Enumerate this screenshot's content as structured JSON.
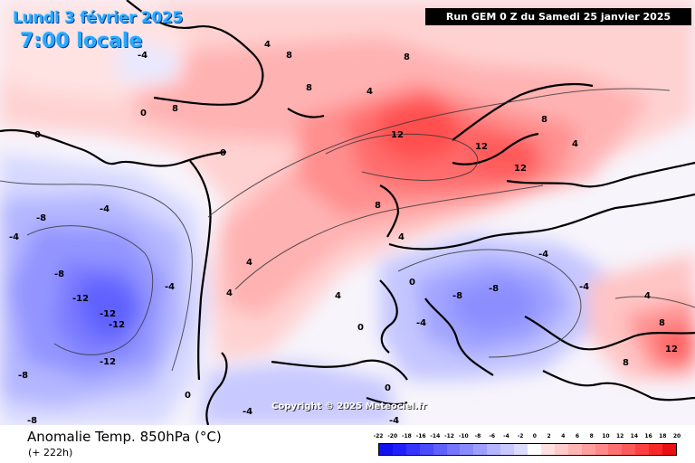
{
  "header": {
    "date": "Lundi 3 février 2025",
    "time": "7:00 locale",
    "run": "Run GEM 0 Z du Samedi 25 janvier 2025"
  },
  "watermark": "Copyright © 2025 Meteociel.fr",
  "footer": {
    "title": "Anomalie Temp. 850hPa (°C)",
    "lead": "(+ 222h)"
  },
  "scale": {
    "labels": [
      "-22",
      "-20",
      "-18",
      "-16",
      "-14",
      "-12",
      "-10",
      "-8",
      "-6",
      "-4",
      "-2",
      "0",
      "2",
      "4",
      "6",
      "8",
      "10",
      "12",
      "14",
      "16",
      "18",
      "20"
    ],
    "colors": [
      "#1010f0",
      "#2020ff",
      "#3535ff",
      "#4a4aff",
      "#6060ff",
      "#7575ff",
      "#8a8aff",
      "#9e9eff",
      "#b4b4ff",
      "#c8c8ff",
      "#dcdcff",
      "#ffffff",
      "#ffe0e0",
      "#ffcaca",
      "#ffb4b4",
      "#ff9e9e",
      "#ff8888",
      "#ff7070",
      "#ff5a5a",
      "#ff4040",
      "#f82828",
      "#e81010"
    ]
  },
  "map_labels": [
    {
      "name": "label-hudson-neg4",
      "text": "-4"
    },
    {
      "name": "label-greenland-4",
      "text": "4"
    },
    {
      "name": "label-greenland-8a",
      "text": "8"
    },
    {
      "name": "label-greenland-8b",
      "text": "8"
    },
    {
      "name": "label-greenland-8c",
      "text": "8"
    },
    {
      "name": "label-greenland-0",
      "text": "0"
    },
    {
      "name": "label-labrador-0",
      "text": "0"
    },
    {
      "name": "label-labrador-neg4",
      "text": "-4"
    },
    {
      "name": "label-atl-neg8",
      "text": "-8"
    },
    {
      "name": "label-atl-neg4",
      "text": "-4"
    },
    {
      "name": "label-atl-neg12a",
      "text": "-12"
    },
    {
      "name": "label-atl-neg12b",
      "text": "-12"
    },
    {
      "name": "label-atl-neg12c",
      "text": "-12"
    },
    {
      "name": "label-atl-neg12d",
      "text": "-12"
    },
    {
      "name": "label-atl-neg8b",
      "text": "-8"
    },
    {
      "name": "label-atl-neg8c",
      "text": "-8"
    },
    {
      "name": "label-atl-neg4b",
      "text": "-4"
    },
    {
      "name": "label-atl-0",
      "text": "0"
    },
    {
      "name": "label-atl-4",
      "text": "4"
    },
    {
      "name": "label-atl-4b",
      "text": "4"
    },
    {
      "name": "label-iceland-8",
      "text": "8"
    },
    {
      "name": "label-iceland-4",
      "text": "4"
    },
    {
      "name": "label-north-12",
      "text": "12"
    },
    {
      "name": "label-scand-12",
      "text": "12"
    },
    {
      "name": "label-scand-12b",
      "text": "12"
    },
    {
      "name": "label-scand-8",
      "text": "8"
    },
    {
      "name": "label-scand-4",
      "text": "4"
    },
    {
      "name": "label-uk-8",
      "text": "8"
    },
    {
      "name": "label-uk-4",
      "text": "4"
    },
    {
      "name": "label-fr-4",
      "text": "4"
    },
    {
      "name": "label-fr-0",
      "text": "0"
    },
    {
      "name": "label-it-neg4",
      "text": "-4"
    },
    {
      "name": "label-it-neg8",
      "text": "-8"
    },
    {
      "name": "label-balkan-neg4",
      "text": "-4"
    },
    {
      "name": "label-balkan-neg8",
      "text": "-8"
    },
    {
      "name": "label-east-4",
      "text": "4"
    },
    {
      "name": "label-east-8",
      "text": "8"
    },
    {
      "name": "label-caspian-12",
      "text": "12"
    },
    {
      "name": "label-caspian-8",
      "text": "8"
    },
    {
      "name": "label-spain-0",
      "text": "0"
    },
    {
      "name": "label-spain-neg4",
      "text": "-4"
    },
    {
      "name": "label-africa-0",
      "text": "0"
    },
    {
      "name": "label-africa-neg4",
      "text": "-4"
    },
    {
      "name": "label-sw-neg8",
      "text": "-8"
    },
    {
      "name": "label-sw-neg4",
      "text": "-4"
    },
    {
      "name": "label-sw-0",
      "text": "0"
    }
  ]
}
